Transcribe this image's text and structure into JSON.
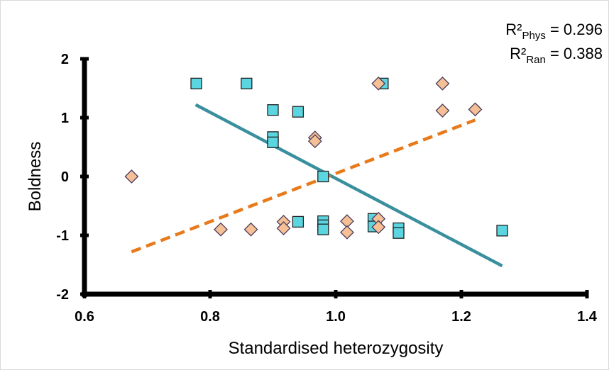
{
  "chart_data": {
    "type": "scatter",
    "xlabel": "Standardised heterozygosity",
    "ylabel": "Boldness",
    "xlim": [
      0.6,
      1.4
    ],
    "ylim": [
      -2,
      2
    ],
    "x_ticks": [
      "0.6",
      "0.8",
      "1.0",
      "1.2",
      "1.4"
    ],
    "y_ticks": [
      "2",
      "1",
      "0",
      "-1",
      "-2"
    ],
    "annotations": [
      {
        "base": "R²",
        "sub": "Phys",
        "rest": " = 0.296"
      },
      {
        "base": "R²",
        "sub": "Ran",
        "rest": " = 0.388"
      }
    ],
    "series": [
      {
        "marker": "square",
        "color": "#5bd6e0",
        "points": [
          [
            0.778,
            1.58
          ],
          [
            0.858,
            1.58
          ],
          [
            0.9,
            1.13
          ],
          [
            0.94,
            1.1
          ],
          [
            0.9,
            0.67
          ],
          [
            0.9,
            0.58
          ],
          [
            0.98,
            0.0
          ],
          [
            1.075,
            1.58
          ],
          [
            0.94,
            -0.77
          ],
          [
            0.98,
            -0.76
          ],
          [
            0.98,
            -0.83
          ],
          [
            0.98,
            -0.9
          ],
          [
            1.06,
            -0.72
          ],
          [
            1.06,
            -0.85
          ],
          [
            1.1,
            -0.88
          ],
          [
            1.1,
            -0.96
          ],
          [
            1.265,
            -0.92
          ]
        ]
      },
      {
        "marker": "diamond",
        "color": "#f5c096",
        "points": [
          [
            0.675,
            0.0
          ],
          [
            0.817,
            -0.9
          ],
          [
            0.865,
            -0.9
          ],
          [
            0.917,
            -0.77
          ],
          [
            0.917,
            -0.88
          ],
          [
            0.967,
            0.66
          ],
          [
            0.967,
            0.6
          ],
          [
            1.018,
            -0.76
          ],
          [
            1.018,
            -0.95
          ],
          [
            1.068,
            -0.72
          ],
          [
            1.068,
            -0.86
          ],
          [
            1.068,
            1.58
          ],
          [
            1.17,
            1.58
          ],
          [
            1.17,
            1.12
          ],
          [
            1.222,
            1.14
          ]
        ]
      }
    ],
    "trendlines": [
      {
        "color": "#3a8f9e",
        "style": "solid",
        "from": [
          0.777,
          1.22
        ],
        "to": [
          1.265,
          -1.52
        ]
      },
      {
        "color": "#e87a1c",
        "style": "dashed",
        "from": [
          0.675,
          -1.28
        ],
        "to": [
          1.222,
          0.96
        ]
      }
    ]
  }
}
